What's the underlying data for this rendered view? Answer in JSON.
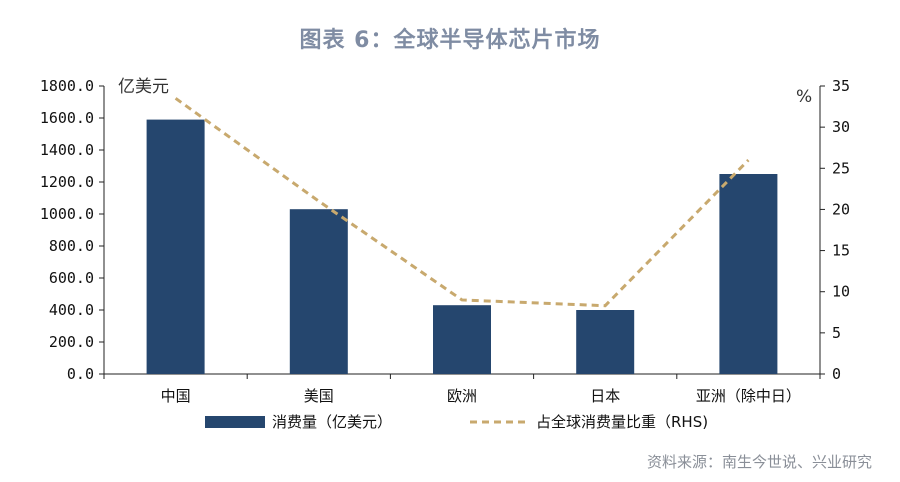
{
  "title": "图表 6：全球半导体芯片市场",
  "source": "资料来源：南生今世说、兴业研究",
  "chart_data": {
    "type": "bar",
    "categories": [
      "中国",
      "美国",
      "欧洲",
      "日本",
      "亚洲（除中日）"
    ],
    "left_unit": "亿美元",
    "right_unit": "%",
    "left_axis": {
      "ylim": [
        0,
        1800
      ],
      "ticks": [
        "0.0",
        "200.0",
        "400.0",
        "600.0",
        "800.0",
        "1000.0",
        "1200.0",
        "1400.0",
        "1600.0",
        "1800.0"
      ]
    },
    "right_axis": {
      "ylim": [
        0,
        35
      ],
      "ticks": [
        "0",
        "5",
        "10",
        "15",
        "20",
        "25",
        "30",
        "35"
      ]
    },
    "series": [
      {
        "name": "消费量（亿美元）",
        "type": "bar",
        "axis": "left",
        "color": "#25466e",
        "values": [
          1590,
          1030,
          430,
          400,
          1250
        ]
      },
      {
        "name": "占全球消费量比重（RHS)",
        "type": "line",
        "axis": "right",
        "color": "#c8a96e",
        "style": "dashed",
        "values": [
          33.5,
          21,
          9,
          8.3,
          26
        ]
      }
    ],
    "grid": false,
    "legend_position": "bottom"
  }
}
